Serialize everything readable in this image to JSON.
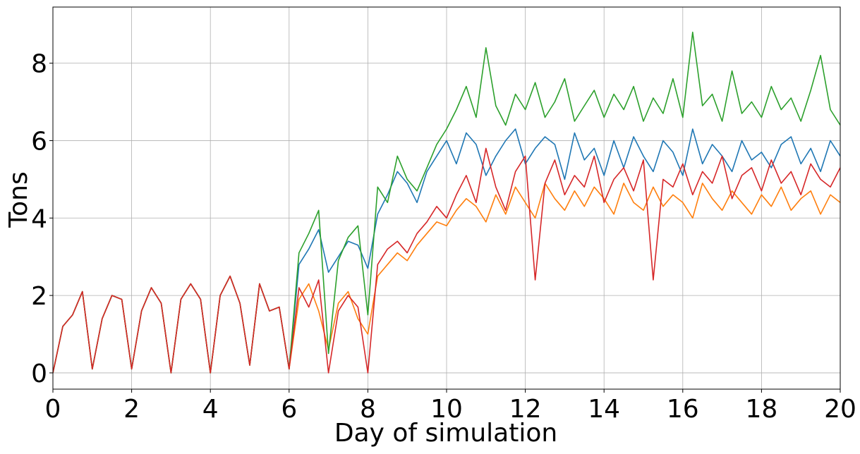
{
  "chart_data": {
    "type": "line",
    "title": "",
    "xlabel": "Day of simulation",
    "ylabel": "Tons",
    "xlim": [
      0,
      20
    ],
    "ylim": [
      -0.42,
      9.45
    ],
    "xticks": [
      0,
      2,
      4,
      6,
      8,
      10,
      12,
      14,
      16,
      18,
      20
    ],
    "yticks": [
      0,
      2,
      4,
      6,
      8
    ],
    "grid": true,
    "legend": "none",
    "series": [
      {
        "color": "#1f77b4",
        "x": [
          0,
          0.25,
          0.5,
          0.75,
          1.0,
          1.25,
          1.5,
          1.75,
          2.0,
          2.25,
          2.5,
          2.75,
          3.0,
          3.25,
          3.5,
          3.75,
          4.0,
          4.25,
          4.5,
          4.75,
          5.0,
          5.25,
          5.5,
          5.75,
          6.0,
          6.25,
          6.5,
          6.75,
          7.0,
          7.25,
          7.5,
          7.75,
          8.0,
          8.25,
          8.5,
          8.75,
          9.0,
          9.25,
          9.5,
          9.75,
          10.0,
          10.25,
          10.5,
          10.75,
          11.0,
          11.25,
          11.5,
          11.75,
          12.0,
          12.25,
          12.5,
          12.75,
          13.0,
          13.25,
          13.5,
          13.75,
          14.0,
          14.25,
          14.5,
          14.75,
          15.0,
          15.25,
          15.5,
          15.75,
          16.0,
          16.25,
          16.5,
          16.75,
          17.0,
          17.25,
          17.5,
          17.75,
          18.0,
          18.25,
          18.5,
          18.75,
          19.0,
          19.25,
          19.5,
          19.75,
          20.0
        ],
        "y": [
          0.0,
          1.2,
          1.5,
          2.1,
          0.1,
          1.4,
          2.0,
          1.9,
          0.1,
          1.6,
          2.2,
          1.8,
          0.0,
          1.9,
          2.3,
          1.9,
          0.0,
          2.0,
          2.5,
          1.8,
          0.2,
          2.3,
          1.6,
          1.7,
          0.1,
          2.8,
          3.2,
          3.7,
          2.6,
          3.0,
          3.4,
          3.3,
          2.7,
          4.1,
          4.6,
          5.2,
          4.9,
          4.4,
          5.2,
          5.6,
          6.0,
          5.4,
          6.2,
          5.9,
          5.1,
          5.6,
          6.0,
          6.3,
          5.4,
          5.8,
          6.1,
          5.9,
          5.0,
          6.2,
          5.5,
          5.8,
          5.1,
          6.0,
          5.3,
          6.1,
          5.6,
          5.2,
          6.0,
          5.7,
          5.1,
          6.3,
          5.4,
          5.9,
          5.6,
          5.2,
          6.0,
          5.5,
          5.7,
          5.3,
          5.9,
          6.1,
          5.4,
          5.8,
          5.2,
          6.0,
          5.6
        ]
      },
      {
        "color": "#ff7f0e",
        "x": [
          0,
          0.25,
          0.5,
          0.75,
          1.0,
          1.25,
          1.5,
          1.75,
          2.0,
          2.25,
          2.5,
          2.75,
          3.0,
          3.25,
          3.5,
          3.75,
          4.0,
          4.25,
          4.5,
          4.75,
          5.0,
          5.25,
          5.5,
          5.75,
          6.0,
          6.25,
          6.5,
          6.75,
          7.0,
          7.25,
          7.5,
          7.75,
          8.0,
          8.25,
          8.5,
          8.75,
          9.0,
          9.25,
          9.5,
          9.75,
          10.0,
          10.25,
          10.5,
          10.75,
          11.0,
          11.25,
          11.5,
          11.75,
          12.0,
          12.25,
          12.5,
          12.75,
          13.0,
          13.25,
          13.5,
          13.75,
          14.0,
          14.25,
          14.5,
          14.75,
          15.0,
          15.25,
          15.5,
          15.75,
          16.0,
          16.25,
          16.5,
          16.75,
          17.0,
          17.25,
          17.5,
          17.75,
          18.0,
          18.25,
          18.5,
          18.75,
          19.0,
          19.25,
          19.5,
          19.75,
          20.0
        ],
        "y": [
          0.0,
          1.2,
          1.5,
          2.1,
          0.1,
          1.4,
          2.0,
          1.9,
          0.1,
          1.6,
          2.2,
          1.8,
          0.0,
          1.9,
          2.3,
          1.9,
          0.0,
          2.0,
          2.5,
          1.8,
          0.2,
          2.3,
          1.6,
          1.7,
          0.1,
          1.9,
          2.3,
          1.6,
          0.6,
          1.8,
          2.1,
          1.4,
          1.0,
          2.5,
          2.8,
          3.1,
          2.9,
          3.3,
          3.6,
          3.9,
          3.8,
          4.2,
          4.5,
          4.3,
          3.9,
          4.6,
          4.1,
          4.8,
          4.4,
          4.0,
          4.9,
          4.5,
          4.2,
          4.7,
          4.3,
          4.8,
          4.5,
          4.1,
          4.9,
          4.4,
          4.2,
          4.8,
          4.3,
          4.6,
          4.4,
          4.0,
          4.9,
          4.5,
          4.2,
          4.7,
          4.4,
          4.1,
          4.6,
          4.3,
          4.8,
          4.2,
          4.5,
          4.7,
          4.1,
          4.6,
          4.4
        ]
      },
      {
        "color": "#2ca02c",
        "x": [
          0,
          0.25,
          0.5,
          0.75,
          1.0,
          1.25,
          1.5,
          1.75,
          2.0,
          2.25,
          2.5,
          2.75,
          3.0,
          3.25,
          3.5,
          3.75,
          4.0,
          4.25,
          4.5,
          4.75,
          5.0,
          5.25,
          5.5,
          5.75,
          6.0,
          6.25,
          6.5,
          6.75,
          7.0,
          7.25,
          7.5,
          7.75,
          8.0,
          8.25,
          8.5,
          8.75,
          9.0,
          9.25,
          9.5,
          9.75,
          10.0,
          10.25,
          10.5,
          10.75,
          11.0,
          11.25,
          11.5,
          11.75,
          12.0,
          12.25,
          12.5,
          12.75,
          13.0,
          13.25,
          13.5,
          13.75,
          14.0,
          14.25,
          14.5,
          14.75,
          15.0,
          15.25,
          15.5,
          15.75,
          16.0,
          16.25,
          16.5,
          16.75,
          17.0,
          17.25,
          17.5,
          17.75,
          18.0,
          18.25,
          18.5,
          18.75,
          19.0,
          19.25,
          19.5,
          19.75,
          20.0
        ],
        "y": [
          0.0,
          1.2,
          1.5,
          2.1,
          0.1,
          1.4,
          2.0,
          1.9,
          0.1,
          1.6,
          2.2,
          1.8,
          0.0,
          1.9,
          2.3,
          1.9,
          0.0,
          2.0,
          2.5,
          1.8,
          0.2,
          2.3,
          1.6,
          1.7,
          0.1,
          3.1,
          3.6,
          4.2,
          0.5,
          2.9,
          3.5,
          3.8,
          1.5,
          4.8,
          4.4,
          5.6,
          5.0,
          4.7,
          5.3,
          5.9,
          6.3,
          6.8,
          7.4,
          6.6,
          8.4,
          6.9,
          6.4,
          7.2,
          6.8,
          7.5,
          6.6,
          7.0,
          7.6,
          6.5,
          6.9,
          7.3,
          6.6,
          7.2,
          6.8,
          7.4,
          6.5,
          7.1,
          6.7,
          7.6,
          6.6,
          8.8,
          6.9,
          7.2,
          6.5,
          7.8,
          6.7,
          7.0,
          6.6,
          7.4,
          6.8,
          7.1,
          6.5,
          7.3,
          8.2,
          6.8,
          6.4
        ]
      },
      {
        "color": "#d62728",
        "x": [
          0,
          0.25,
          0.5,
          0.75,
          1.0,
          1.25,
          1.5,
          1.75,
          2.0,
          2.25,
          2.5,
          2.75,
          3.0,
          3.25,
          3.5,
          3.75,
          4.0,
          4.25,
          4.5,
          4.75,
          5.0,
          5.25,
          5.5,
          5.75,
          6.0,
          6.25,
          6.5,
          6.75,
          7.0,
          7.25,
          7.5,
          7.75,
          8.0,
          8.25,
          8.5,
          8.75,
          9.0,
          9.25,
          9.5,
          9.75,
          10.0,
          10.25,
          10.5,
          10.75,
          11.0,
          11.25,
          11.5,
          11.75,
          12.0,
          12.25,
          12.5,
          12.75,
          13.0,
          13.25,
          13.5,
          13.75,
          14.0,
          14.25,
          14.5,
          14.75,
          15.0,
          15.25,
          15.5,
          15.75,
          16.0,
          16.25,
          16.5,
          16.75,
          17.0,
          17.25,
          17.5,
          17.75,
          18.0,
          18.25,
          18.5,
          18.75,
          19.0,
          19.25,
          19.5,
          19.75,
          20.0
        ],
        "y": [
          0.0,
          1.2,
          1.5,
          2.1,
          0.1,
          1.4,
          2.0,
          1.9,
          0.1,
          1.6,
          2.2,
          1.8,
          0.0,
          1.9,
          2.3,
          1.9,
          0.0,
          2.0,
          2.5,
          1.8,
          0.2,
          2.3,
          1.6,
          1.7,
          0.1,
          2.2,
          1.7,
          2.4,
          0.0,
          1.6,
          2.0,
          1.7,
          0.0,
          2.8,
          3.2,
          3.4,
          3.1,
          3.6,
          3.9,
          4.3,
          4.0,
          4.6,
          5.1,
          4.4,
          5.8,
          4.8,
          4.2,
          5.2,
          5.6,
          2.4,
          4.9,
          5.5,
          4.6,
          5.1,
          4.8,
          5.6,
          4.4,
          5.0,
          5.3,
          4.7,
          5.5,
          2.4,
          5.0,
          4.8,
          5.4,
          4.6,
          5.2,
          4.9,
          5.6,
          4.5,
          5.1,
          5.3,
          4.7,
          5.5,
          4.9,
          5.2,
          4.6,
          5.4,
          5.0,
          4.8,
          5.3
        ]
      }
    ]
  }
}
